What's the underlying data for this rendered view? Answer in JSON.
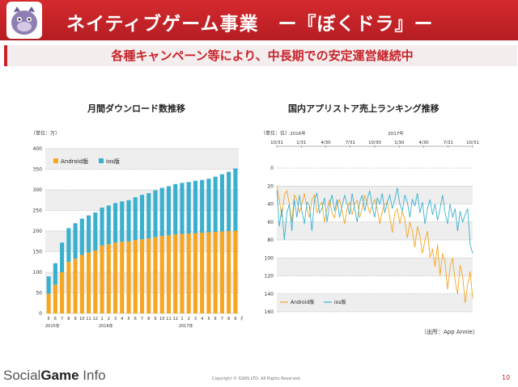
{
  "header": {
    "title": "ネイティブゲーム事業　ー『ぼくドラ』ー"
  },
  "subtitle": "各種キャンペーン等により、中長期での安定運営継続中",
  "left": {
    "title": "月間ダウンロード数推移",
    "unit": "（単位：万）",
    "xlabel_unit": "月",
    "years": [
      "2015年",
      "2016年",
      "2017年"
    ]
  },
  "right": {
    "title": "国内アプリストア売上ランキング推移",
    "unit": "（単位：位）",
    "years": [
      "2016年",
      "2017年"
    ]
  },
  "source": "（出所：App Annie）",
  "footer": {
    "logo_a": "Social",
    "logo_b": "Game",
    "logo_c": " Info",
    "copyright": "Copyright © IGNIS LTD. All Rights Reserved.",
    "page": "10"
  },
  "colors": {
    "brand": "#c8232b",
    "android": "#f5a623",
    "ios": "#3ab0cf"
  },
  "chart_data": [
    {
      "type": "bar",
      "stacked": true,
      "title": "月間ダウンロード数推移",
      "ylabel": "（単位：万）",
      "ylim": [
        0,
        400
      ],
      "yticks": [
        0,
        50,
        100,
        150,
        200,
        250,
        300,
        350,
        400
      ],
      "legend": "top-left",
      "grid": true,
      "categories": [
        "5",
        "6",
        "7",
        "8",
        "9",
        "10",
        "11",
        "12",
        "1",
        "2",
        "3",
        "4",
        "5",
        "6",
        "7",
        "8",
        "9",
        "10",
        "11",
        "12",
        "1",
        "2",
        "3",
        "4",
        "5",
        "6",
        "7",
        "8",
        "9"
      ],
      "series": [
        {
          "name": "Android版",
          "values": [
            48,
            70,
            100,
            125,
            133,
            142,
            148,
            153,
            165,
            168,
            172,
            174,
            175,
            178,
            180,
            182,
            185,
            188,
            190,
            192,
            193,
            194,
            195,
            196,
            197,
            198,
            199,
            200,
            201
          ]
        },
        {
          "name": "ios版",
          "values": [
            42,
            52,
            72,
            82,
            86,
            88,
            90,
            92,
            92,
            94,
            96,
            98,
            100,
            104,
            108,
            110,
            114,
            117,
            119,
            122,
            124,
            125,
            127,
            128,
            130,
            134,
            139,
            144,
            151
          ]
        }
      ]
    },
    {
      "type": "line",
      "title": "国内アプリストア売上ランキング推移",
      "ylabel": "（単位：位）",
      "ylim": [
        160,
        0
      ],
      "yticks": [
        0,
        20,
        40,
        60,
        80,
        100,
        120,
        140,
        160
      ],
      "x_ticks": [
        "10/31",
        "1/31",
        "4/30",
        "7/31",
        "10/30",
        "1/30",
        "4/30",
        "7/31",
        "10/31"
      ],
      "legend": "bottom-left",
      "grid": true,
      "series": [
        {
          "name": "Android版",
          "values": [
            20,
            35,
            55,
            30,
            25,
            40,
            60,
            30,
            35,
            50,
            40,
            28,
            45,
            55,
            35,
            30,
            50,
            42,
            38,
            60,
            45,
            35,
            50,
            55,
            40,
            35,
            48,
            62,
            45,
            38,
            52,
            40,
            36,
            55,
            45,
            30,
            40,
            50,
            42,
            35,
            45,
            62,
            48,
            40,
            38,
            55,
            72,
            50,
            45,
            62,
            48,
            58,
            78,
            60,
            70,
            88,
            65,
            75,
            95,
            80,
            70,
            100,
            90,
            110,
            85,
            120,
            95,
            105,
            135,
            110,
            100,
            125,
            140,
            108,
            120,
            150,
            130,
            115,
            145
          ]
        },
        {
          "name": "ios版",
          "values": [
            25,
            65,
            45,
            80,
            50,
            40,
            70,
            35,
            55,
            30,
            48,
            62,
            38,
            42,
            70,
            35,
            28,
            50,
            45,
            33,
            60,
            40,
            30,
            48,
            35,
            55,
            42,
            30,
            40,
            52,
            28,
            45,
            60,
            38,
            30,
            48,
            35,
            25,
            42,
            55,
            33,
            40,
            28,
            50,
            38,
            30,
            45,
            35,
            22,
            40,
            48,
            30,
            38,
            55,
            35,
            42,
            28,
            50,
            38,
            62,
            45,
            35,
            52,
            40,
            58,
            45,
            30,
            50,
            62,
            40,
            55,
            45,
            70,
            48,
            60,
            52,
            45,
            85,
            95
          ]
        }
      ]
    }
  ]
}
